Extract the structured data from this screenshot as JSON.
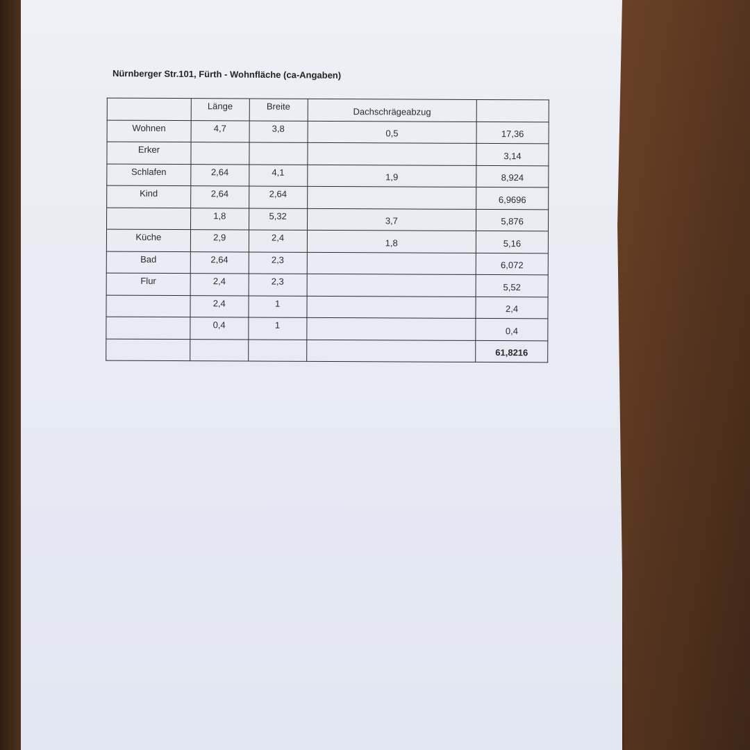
{
  "document": {
    "title": "Nürnberger Str.101, Fürth - Wohnfläche (ca-Angaben)",
    "table": {
      "headers": [
        "",
        "Länge",
        "Breite",
        "Dachschrägeabzug",
        ""
      ],
      "rows": [
        [
          "Wohnen",
          "4,7",
          "3,8",
          "0,5",
          "17,36"
        ],
        [
          "Erker",
          "",
          "",
          "",
          "3,14"
        ],
        [
          "Schlafen",
          "2,64",
          "4,1",
          "1,9",
          "8,924"
        ],
        [
          "Kind",
          "2,64",
          "2,64",
          "",
          "6,9696"
        ],
        [
          "",
          "1,8",
          "5,32",
          "3,7",
          "5,876"
        ],
        [
          "Küche",
          "2,9",
          "2,4",
          "1,8",
          "5,16"
        ],
        [
          "Bad",
          "2,64",
          "2,3",
          "",
          "6,072"
        ],
        [
          "Flur",
          "2,4",
          "2,3",
          "",
          "5,52"
        ],
        [
          "",
          "2,4",
          "1",
          "",
          "2,4"
        ],
        [
          "",
          "0,4",
          "1",
          "",
          "0,4"
        ]
      ],
      "total": [
        "",
        "",
        "",
        "",
        "61,8216"
      ]
    }
  }
}
